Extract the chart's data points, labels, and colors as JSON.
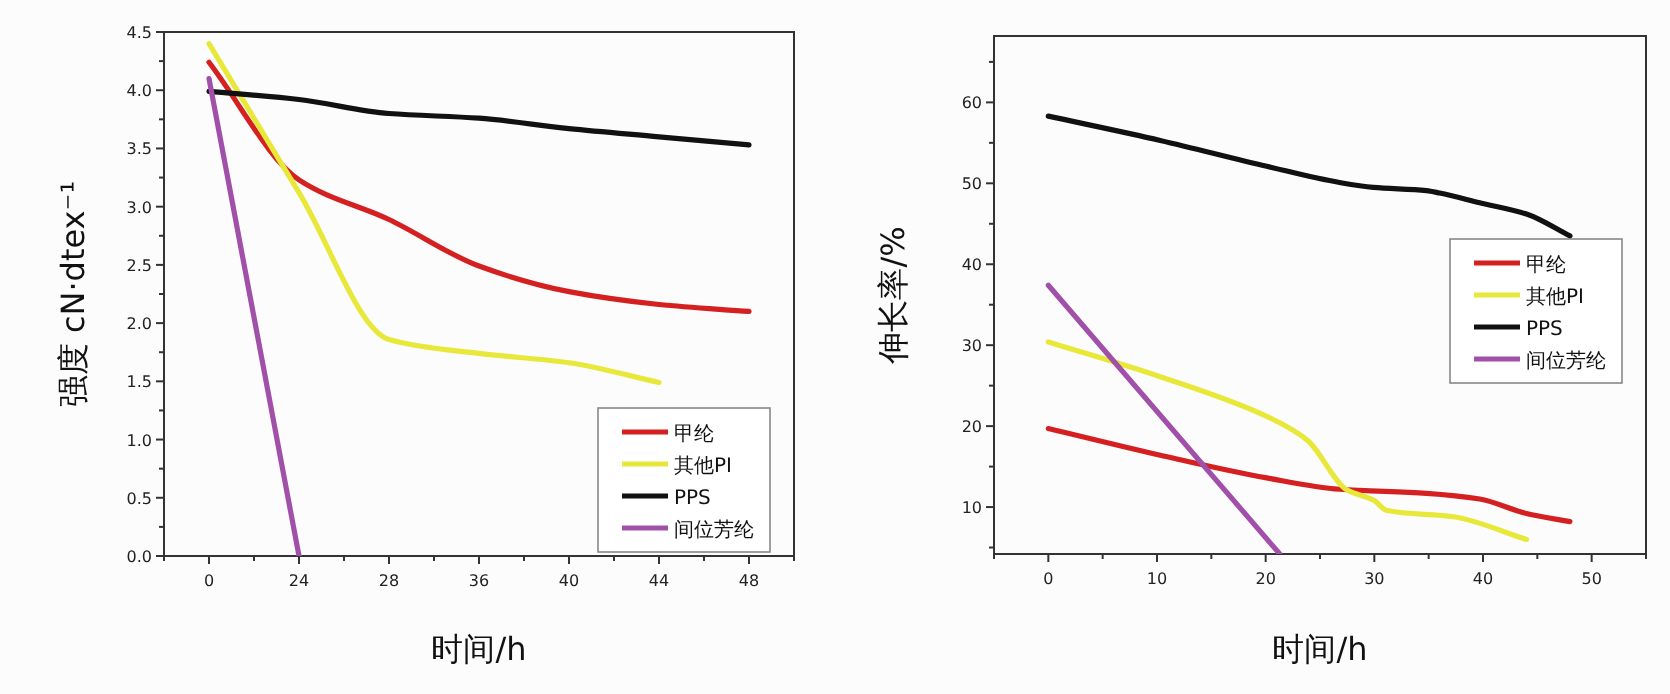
{
  "chart_data": [
    {
      "type": "line",
      "xlabel": "时间/h",
      "ylabel": "强度 cN·dtex⁻¹",
      "ylim": [
        0,
        4.5
      ],
      "categories": [
        "0",
        "24",
        "28",
        "36",
        "40",
        "44",
        "48"
      ],
      "yticks": [
        {
          "value": 0,
          "label": "0.0"
        },
        {
          "value": 0.5,
          "label": "0.5"
        },
        {
          "value": 1,
          "label": "1.0"
        },
        {
          "value": 1.5,
          "label": "1.5"
        },
        {
          "value": 2,
          "label": "2.0"
        },
        {
          "value": 2.5,
          "label": "2.5"
        },
        {
          "value": 3,
          "label": "3.0"
        },
        {
          "value": 3.5,
          "label": "3.5"
        },
        {
          "value": 4,
          "label": "4.0"
        },
        {
          "value": 4.5,
          "label": "4.5"
        }
      ],
      "legend": "bottom right",
      "grid": false,
      "marker": "none",
      "line_style": "solid",
      "series": [
        {
          "name": "甲纶",
          "color": "#d42020",
          "values": [
            4.24,
            3.23,
            2.89,
            2.49,
            2.27,
            2.16,
            2.1
          ]
        },
        {
          "name": "其他PI",
          "color": "#e8e83a",
          "values": [
            4.4,
            3.12,
            1.86,
            1.74,
            1.66,
            1.49,
            null
          ]
        },
        {
          "name": "PPS",
          "color": "#111111",
          "values": [
            3.99,
            3.92,
            3.8,
            3.76,
            3.67,
            3.6,
            3.53
          ]
        },
        {
          "name": "间位芳纶",
          "color": "#a050a8",
          "values": [
            4.1,
            0,
            null,
            null,
            null,
            null,
            null
          ]
        }
      ]
    },
    {
      "type": "line",
      "xlabel": "时间/h",
      "ylabel": "伸长率/%",
      "xlim": [
        -5,
        55
      ],
      "ylim": [
        4.2,
        68.2
      ],
      "xticks": [
        0,
        10,
        20,
        30,
        40,
        50
      ],
      "yticks": [
        10,
        20,
        30,
        40,
        50,
        60
      ],
      "legend": "right",
      "grid": false,
      "marker": "none",
      "line_style": "solid",
      "series": [
        {
          "name": "甲纶",
          "color": "#d42020",
          "x": [
            0,
            10.3,
            20.1,
            26.8,
            34.8,
            39.7,
            44,
            48
          ],
          "values": [
            19.7,
            16.4,
            13.6,
            12.2,
            11.7,
            11.0,
            9.2,
            8.2
          ]
        },
        {
          "name": "其他PI",
          "color": "#e8e83a",
          "x": [
            0,
            10.3,
            20.1,
            23.8,
            27.5,
            30,
            31.1,
            37.3,
            44
          ],
          "values": [
            30.4,
            26.1,
            21.2,
            18.3,
            12.1,
            10.8,
            9.6,
            8.8,
            6.0
          ]
        },
        {
          "name": "PPS",
          "color": "#111111",
          "x": [
            0,
            10.3,
            20.1,
            26.8,
            29.9,
            34.8,
            36,
            39.7,
            44,
            48
          ],
          "values": [
            58.3,
            55.3,
            52.1,
            50.1,
            49.5,
            49.1,
            48.8,
            47.6,
            46.2,
            43.5
          ]
        },
        {
          "name": "间位芳纶",
          "color": "#a050a8",
          "x": [
            0,
            21.3
          ],
          "values": [
            37.4,
            4.2
          ]
        }
      ]
    }
  ]
}
